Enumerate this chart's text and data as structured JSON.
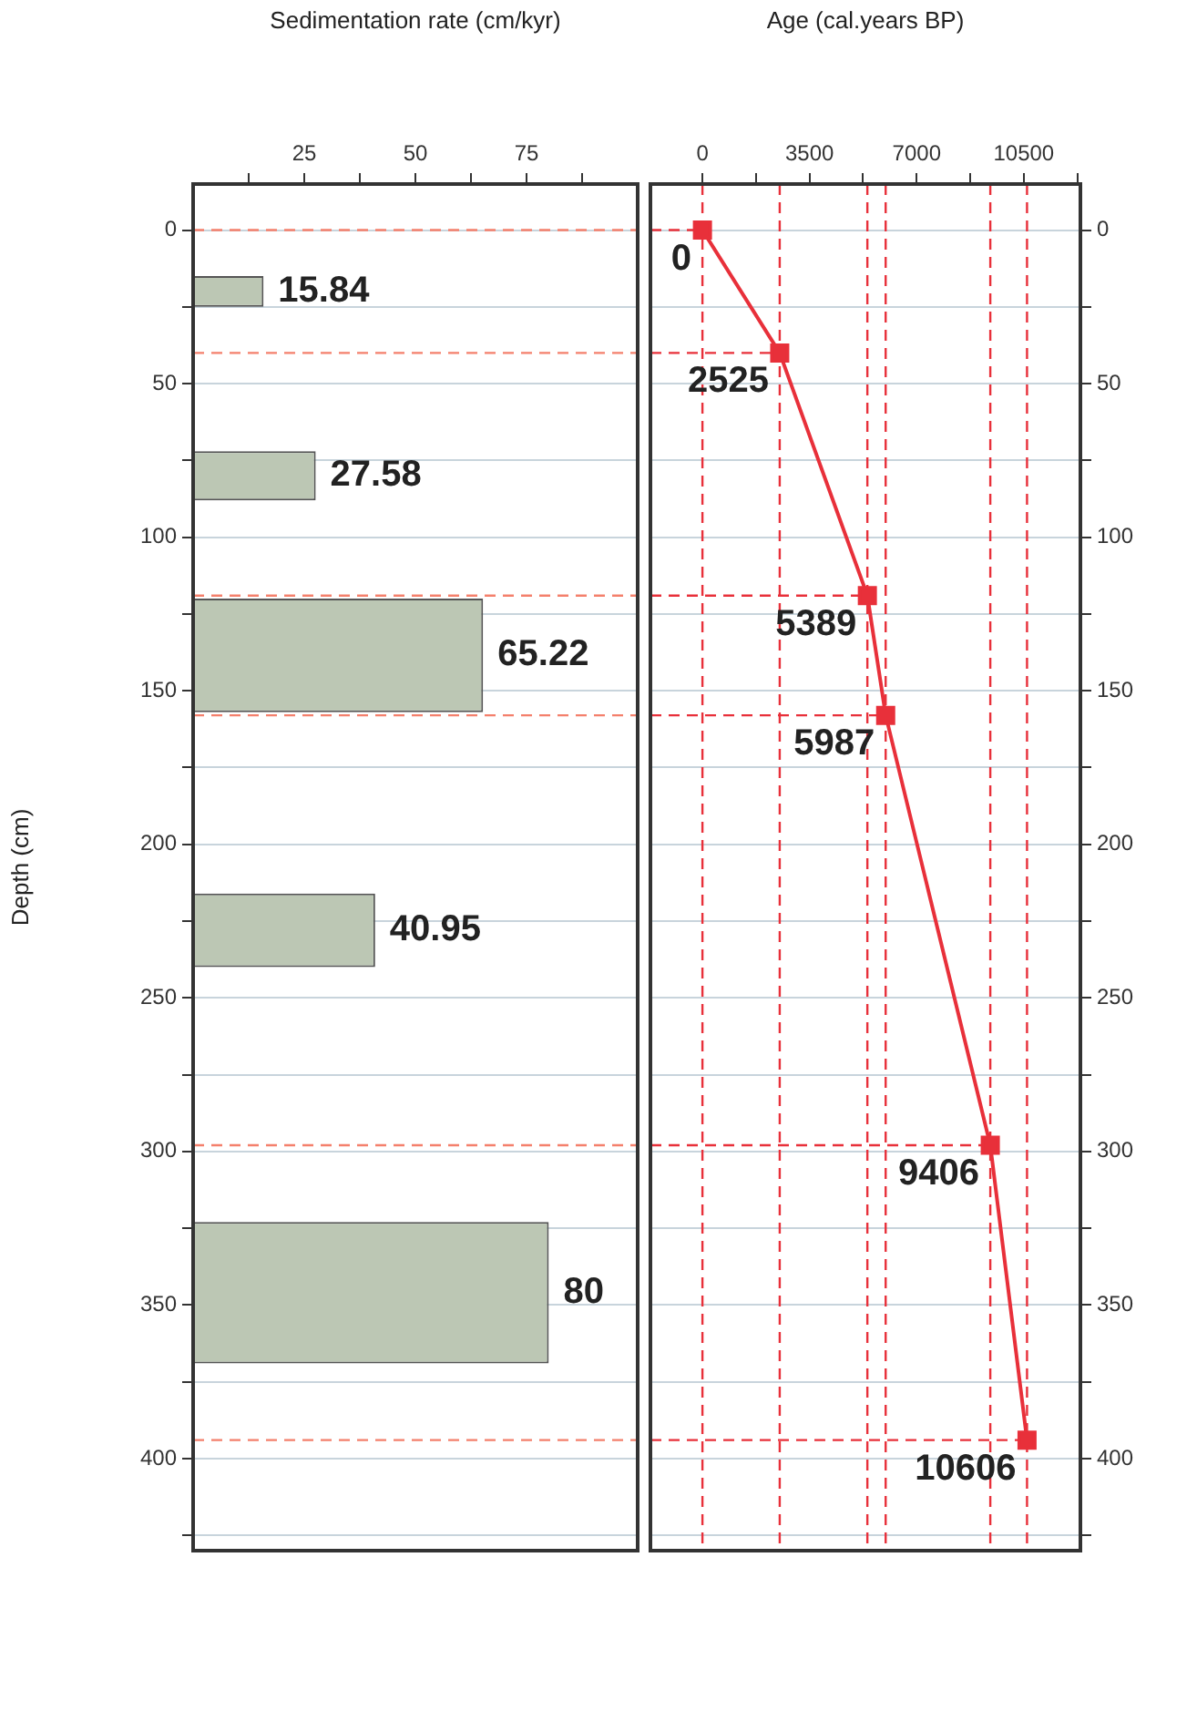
{
  "chart_data": [
    {
      "type": "histogram",
      "orientation": "horizontal",
      "xlabel": "Sedimentation rate (cm/kyr)",
      "ylabel": "Depth (cm)",
      "bins": [
        15,
        25,
        72,
        88,
        120,
        157,
        216,
        240,
        323,
        369
      ],
      "values": [
        15.84,
        null,
        27.58,
        null,
        65.22,
        null,
        40.95,
        null,
        80
      ],
      "color": "#bcc7b4",
      "data_labels": true,
      "xlim": [
        0,
        100
      ],
      "xticks": [
        {
          "value": 12.5,
          "label": null
        },
        25,
        {
          "value": 37.5,
          "label": null
        },
        50,
        {
          "value": 62.5,
          "label": null
        },
        75,
        {
          "value": 87.5,
          "label": null
        }
      ],
      "ylim": [
        430,
        -15
      ],
      "yticks": [
        0,
        {
          "value": 25,
          "label": null
        },
        50,
        {
          "value": 75,
          "label": null
        },
        100,
        {
          "value": 125,
          "label": null
        },
        150,
        {
          "value": 175,
          "label": null
        },
        200,
        {
          "value": 225,
          "label": null
        },
        250,
        {
          "value": 275,
          "label": null
        },
        300,
        {
          "value": 325,
          "label": null
        },
        350,
        {
          "value": 375,
          "label": null
        },
        400,
        {
          "value": 425,
          "label": null
        }
      ],
      "grid": "y",
      "ref_lines": [
        {
          "axis": "y",
          "value": 0,
          "color": "#f4806c",
          "line_style": "dashed"
        },
        {
          "axis": "y",
          "value": 40,
          "color": "#f4806c",
          "line_style": "dashed"
        },
        {
          "axis": "y",
          "value": 119,
          "color": "#f4806c",
          "line_style": "dashed"
        },
        {
          "axis": "y",
          "value": 158,
          "color": "#f4806c",
          "line_style": "dashed"
        },
        {
          "axis": "y",
          "value": 298,
          "color": "#f4806c",
          "line_style": "dashed"
        },
        {
          "axis": "y",
          "value": 394,
          "color": "#f4806c",
          "line_style": "dashed"
        }
      ]
    },
    {
      "type": "line",
      "xlabel": "Age (cal.years BP)",
      "series": [
        {
          "color": "#e8303a",
          "x": [
            0,
            2525,
            5389,
            5987,
            9406,
            10606
          ],
          "values": [
            0,
            40,
            119,
            158,
            298,
            394
          ]
        }
      ],
      "annotations": [
        {
          "text": "0",
          "x": 0,
          "y": 0
        },
        {
          "text": "2525",
          "x": 2525,
          "y": 40
        },
        {
          "text": "5389",
          "x": 5389,
          "y": 119
        },
        {
          "text": "5987",
          "x": 5987,
          "y": 158
        },
        {
          "text": "9406",
          "x": 9406,
          "y": 298
        },
        {
          "text": "10606",
          "x": 10606,
          "y": 394
        }
      ],
      "marker": "square",
      "line_style": "solid",
      "xlim": [
        -1700,
        12350
      ],
      "xticks": [
        0,
        {
          "value": 1750,
          "label": null
        },
        3500,
        {
          "value": 5250,
          "label": null
        },
        7000,
        {
          "value": 8750,
          "label": null
        },
        10500,
        {
          "value": 12250,
          "label": null
        }
      ],
      "ylim": [
        430,
        -15
      ],
      "yticks": [
        0,
        {
          "value": 25,
          "label": null
        },
        50,
        {
          "value": 75,
          "label": null
        },
        100,
        {
          "value": 125,
          "label": null
        },
        150,
        {
          "value": 175,
          "label": null
        },
        200,
        {
          "value": 225,
          "label": null
        },
        250,
        {
          "value": 275,
          "label": null
        },
        300,
        {
          "value": 325,
          "label": null
        },
        350,
        {
          "value": 375,
          "label": null
        },
        400,
        {
          "value": 425,
          "label": null
        }
      ],
      "grid": "y",
      "ref_lines": [
        {
          "axis": "y",
          "value": 0,
          "color": "#e8303a",
          "line_style": "dashed"
        },
        {
          "axis": "y",
          "value": 40,
          "color": "#e8303a",
          "line_style": "dashed"
        },
        {
          "axis": "y",
          "value": 119,
          "color": "#e8303a",
          "line_style": "dashed"
        },
        {
          "axis": "y",
          "value": 158,
          "color": "#e8303a",
          "line_style": "dashed"
        },
        {
          "axis": "y",
          "value": 298,
          "color": "#e8303a",
          "line_style": "dashed"
        },
        {
          "axis": "y",
          "value": 394,
          "color": "#e8303a",
          "line_style": "dashed"
        },
        {
          "axis": "x",
          "value": 0,
          "color": "#e8303a",
          "line_style": "dashed"
        },
        {
          "axis": "x",
          "value": 2525,
          "color": "#e8303a",
          "line_style": "dashed"
        },
        {
          "axis": "x",
          "value": 5389,
          "color": "#e8303a",
          "line_style": "dashed"
        },
        {
          "axis": "x",
          "value": 5987,
          "color": "#e8303a",
          "line_style": "dashed"
        },
        {
          "axis": "x",
          "value": 9406,
          "color": "#e8303a",
          "line_style": "dashed"
        },
        {
          "axis": "x",
          "value": 10606,
          "color": "#e8303a",
          "line_style": "dashed"
        }
      ]
    }
  ]
}
